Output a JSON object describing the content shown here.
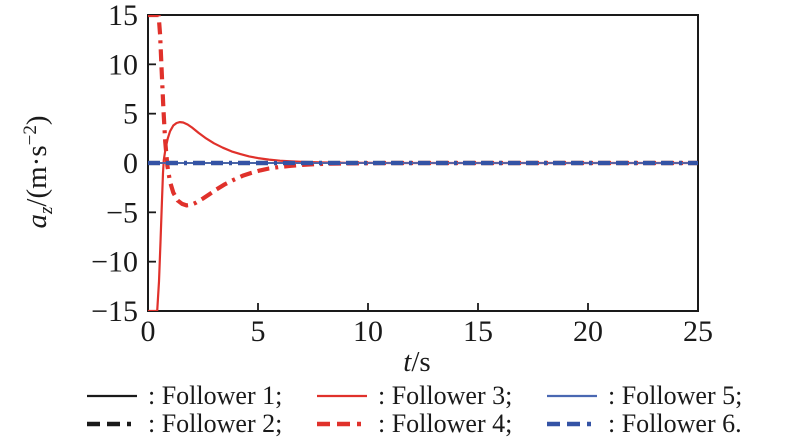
{
  "window": {
    "background": "#ffffff"
  },
  "chart_data": {
    "type": "line",
    "title": "",
    "xlabel": {
      "var": "t",
      "rest": "/s"
    },
    "ylabel": {
      "var": "a",
      "sub": "z",
      "rest": "/(m·s",
      "sup": "−2",
      "close": ")"
    },
    "xlim": [
      0,
      25
    ],
    "ylim": [
      -15,
      15
    ],
    "xticks": [
      0,
      5,
      10,
      15,
      20,
      25
    ],
    "xticklabels": [
      "0",
      "5",
      "10",
      "15",
      "20",
      "25"
    ],
    "yticks": [
      -15,
      -10,
      -5,
      0,
      5,
      10,
      15
    ],
    "yticklabels": [
      "−15",
      "−10",
      "−5",
      "0",
      "5",
      "10",
      "15"
    ],
    "grid": false,
    "legend_position": "below, two rows, three columns",
    "axis_color": "#1a1a1a",
    "series": [
      {
        "name": "Follower 1",
        "color": "#1a1a1a",
        "style": "solid",
        "width": 1.7,
        "points": [
          [
            0,
            0
          ],
          [
            25,
            0
          ]
        ]
      },
      {
        "name": "Follower 2",
        "color": "#1a1a1a",
        "style": "dashed",
        "width": 4.2,
        "points": [
          [
            0,
            0
          ],
          [
            25,
            0
          ]
        ]
      },
      {
        "name": "Follower 3",
        "color": "#e0312b",
        "style": "solid",
        "width": 2.2,
        "points": [
          [
            0,
            -15
          ],
          [
            0.42,
            -15
          ],
          [
            0.5,
            -12
          ],
          [
            0.57,
            -8
          ],
          [
            0.63,
            -4
          ],
          [
            0.68,
            -1
          ],
          [
            0.72,
            0.3
          ],
          [
            0.8,
            1.5
          ],
          [
            0.9,
            2.5
          ],
          [
            1.0,
            3.2
          ],
          [
            1.15,
            3.8
          ],
          [
            1.3,
            4.05
          ],
          [
            1.45,
            4.15
          ],
          [
            1.6,
            4.1
          ],
          [
            1.8,
            3.9
          ],
          [
            2.0,
            3.6
          ],
          [
            2.3,
            3.05
          ],
          [
            2.6,
            2.55
          ],
          [
            3.0,
            2.0
          ],
          [
            3.4,
            1.55
          ],
          [
            3.8,
            1.18
          ],
          [
            4.2,
            0.9
          ],
          [
            4.6,
            0.67
          ],
          [
            5.0,
            0.5
          ],
          [
            5.5,
            0.34
          ],
          [
            6.0,
            0.23
          ],
          [
            6.5,
            0.16
          ],
          [
            7.0,
            0.11
          ],
          [
            8.0,
            0.05
          ],
          [
            9.0,
            0.02
          ],
          [
            10,
            0.01
          ],
          [
            11,
            0
          ],
          [
            25,
            0
          ]
        ]
      },
      {
        "name": "Follower 4",
        "color": "#e0312b",
        "style": "dashed",
        "width": 4.2,
        "points": [
          [
            0,
            15
          ],
          [
            0.48,
            15
          ],
          [
            0.55,
            13
          ],
          [
            0.62,
            9.5
          ],
          [
            0.7,
            5.5
          ],
          [
            0.78,
            2.2
          ],
          [
            0.88,
            -0.3
          ],
          [
            1.0,
            -1.9
          ],
          [
            1.15,
            -3.0
          ],
          [
            1.35,
            -3.8
          ],
          [
            1.55,
            -4.15
          ],
          [
            1.75,
            -4.3
          ],
          [
            1.95,
            -4.25
          ],
          [
            2.2,
            -4.0
          ],
          [
            2.5,
            -3.6
          ],
          [
            2.8,
            -3.15
          ],
          [
            3.1,
            -2.7
          ],
          [
            3.5,
            -2.15
          ],
          [
            3.9,
            -1.7
          ],
          [
            4.3,
            -1.3
          ],
          [
            4.7,
            -1.0
          ],
          [
            5.1,
            -0.75
          ],
          [
            5.5,
            -0.56
          ],
          [
            6.0,
            -0.4
          ],
          [
            6.5,
            -0.28
          ],
          [
            7.0,
            -0.19
          ],
          [
            7.5,
            -0.13
          ],
          [
            8.0,
            -0.08
          ],
          [
            9.0,
            -0.04
          ],
          [
            10,
            -0.02
          ],
          [
            11,
            0
          ],
          [
            25,
            0
          ]
        ]
      },
      {
        "name": "Follower 5",
        "color": "#4a68b2",
        "style": "solid",
        "width": 1.7,
        "points": [
          [
            0,
            0
          ],
          [
            25,
            0
          ]
        ]
      },
      {
        "name": "Follower 6",
        "color": "#3453a5",
        "style": "dashed",
        "width": 4.2,
        "points": [
          [
            0,
            0
          ],
          [
            25,
            0
          ]
        ]
      }
    ]
  },
  "legend": {
    "entries": [
      {
        "label": ": Follower 1;",
        "series": 0,
        "row": 0,
        "col": 0
      },
      {
        "label": ": Follower 2;",
        "series": 1,
        "row": 1,
        "col": 0
      },
      {
        "label": ": Follower 3;",
        "series": 2,
        "row": 0,
        "col": 1
      },
      {
        "label": ": Follower 4;",
        "series": 3,
        "row": 1,
        "col": 1
      },
      {
        "label": ": Follower 5;",
        "series": 4,
        "row": 0,
        "col": 2
      },
      {
        "label": ": Follower 6.",
        "series": 5,
        "row": 1,
        "col": 2
      }
    ]
  }
}
